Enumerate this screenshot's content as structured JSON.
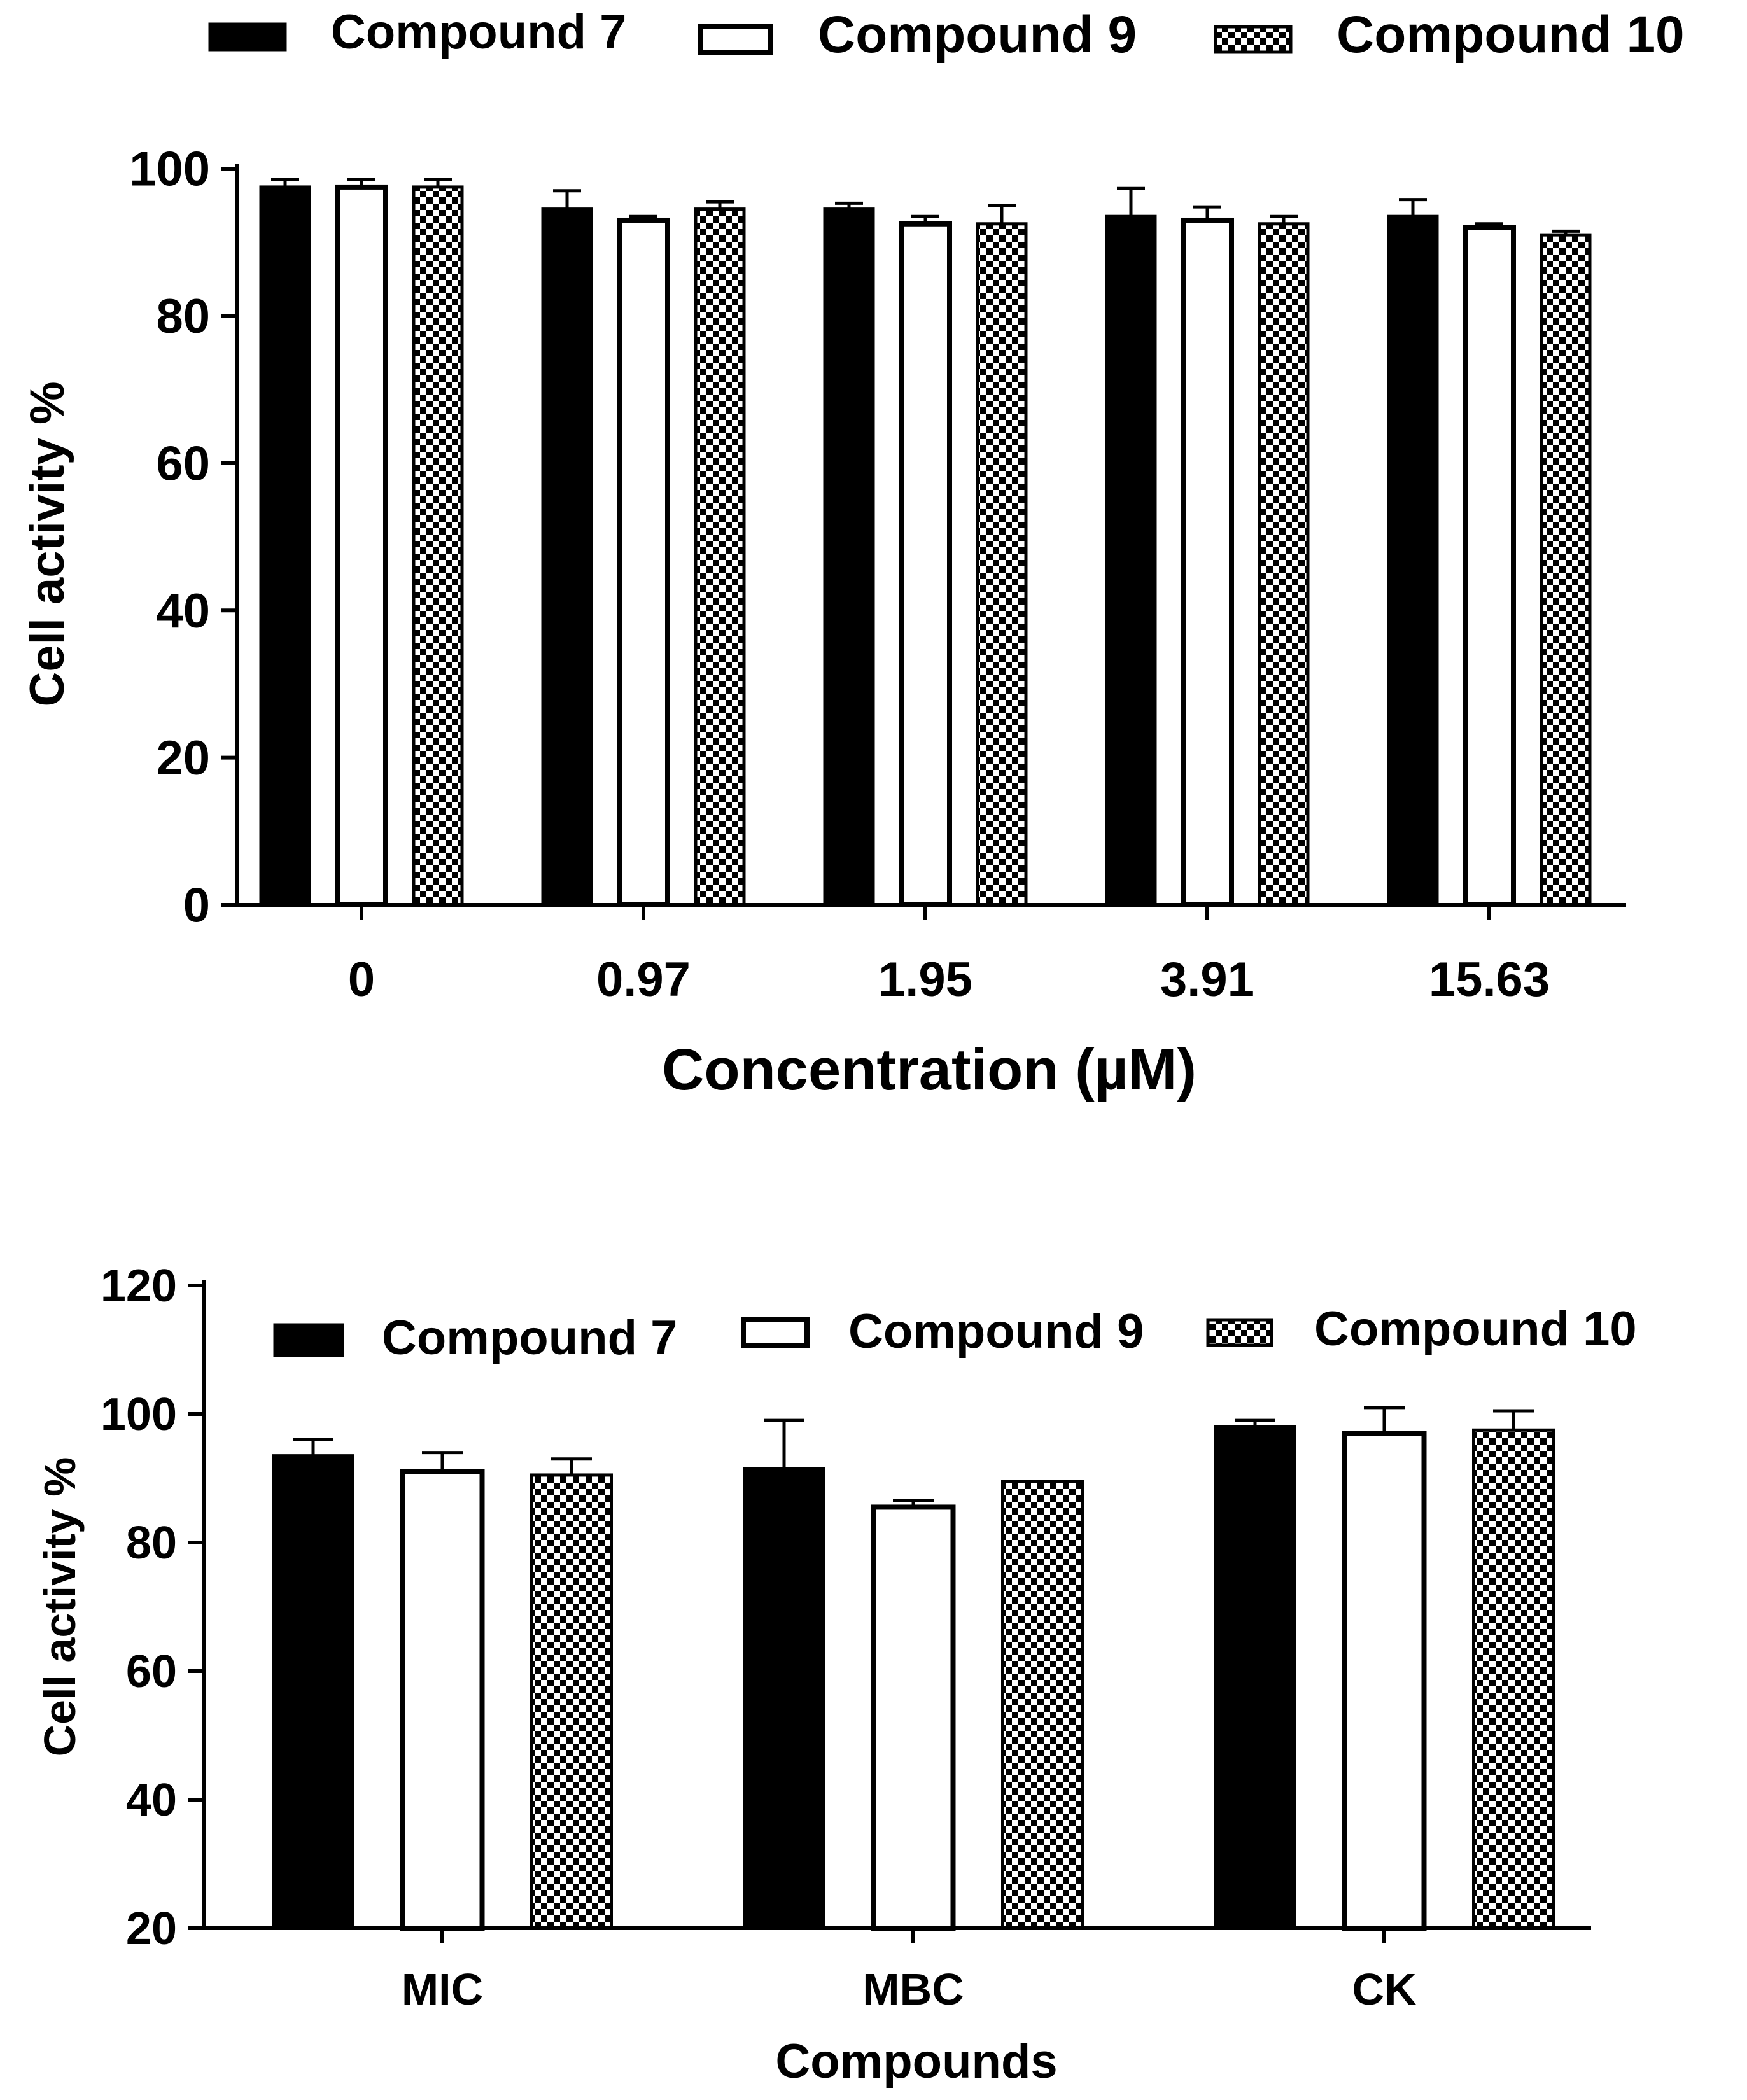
{
  "chart_data": [
    {
      "type": "bar",
      "title": "",
      "xlabel": "Concentration (µM)",
      "ylabel": "Cell activity %",
      "ylim": [
        0,
        100
      ],
      "yticks": [
        "0",
        "20",
        "40",
        "60",
        "80",
        "100"
      ],
      "categories": [
        "0",
        "0.97",
        "1.95",
        "3.91",
        "15.63"
      ],
      "legend_position": "top",
      "series": [
        {
          "name": "Compound 7",
          "pattern": "solid",
          "values": [
            97.5,
            94.5,
            94.5,
            93.5,
            93.5
          ],
          "errors": [
            1.0,
            2.5,
            0.8,
            3.8,
            2.3
          ]
        },
        {
          "name": "Compound 9",
          "pattern": "open",
          "values": [
            97.5,
            93.0,
            92.5,
            93.0,
            92.0
          ],
          "errors": [
            1.0,
            0.5,
            1.0,
            1.8,
            0.5
          ]
        },
        {
          "name": "Compound 10",
          "pattern": "checker",
          "values": [
            97.5,
            94.5,
            92.5,
            92.5,
            91.0
          ],
          "errors": [
            1.0,
            1.0,
            2.5,
            1.0,
            0.5
          ]
        }
      ]
    },
    {
      "type": "bar",
      "title": "",
      "xlabel": "Compounds",
      "ylabel": "Cell activity %",
      "ylim": [
        20,
        120
      ],
      "yticks": [
        "20",
        "40",
        "60",
        "80",
        "100",
        "120"
      ],
      "categories": [
        "MIC",
        "MBC",
        "CK"
      ],
      "legend_position": "top-inside",
      "series": [
        {
          "name": "Compound 7",
          "pattern": "solid",
          "values": [
            93.5,
            91.5,
            98.0
          ],
          "errors": [
            2.5,
            7.5,
            1.0
          ]
        },
        {
          "name": "Compound 9",
          "pattern": "open",
          "values": [
            91.0,
            85.5,
            97.0
          ],
          "errors": [
            3.0,
            1.0,
            4.0
          ]
        },
        {
          "name": "Compound 10",
          "pattern": "checker",
          "values": [
            90.5,
            89.5,
            97.5
          ],
          "errors": [
            2.5,
            0.0,
            3.0
          ]
        }
      ]
    }
  ]
}
